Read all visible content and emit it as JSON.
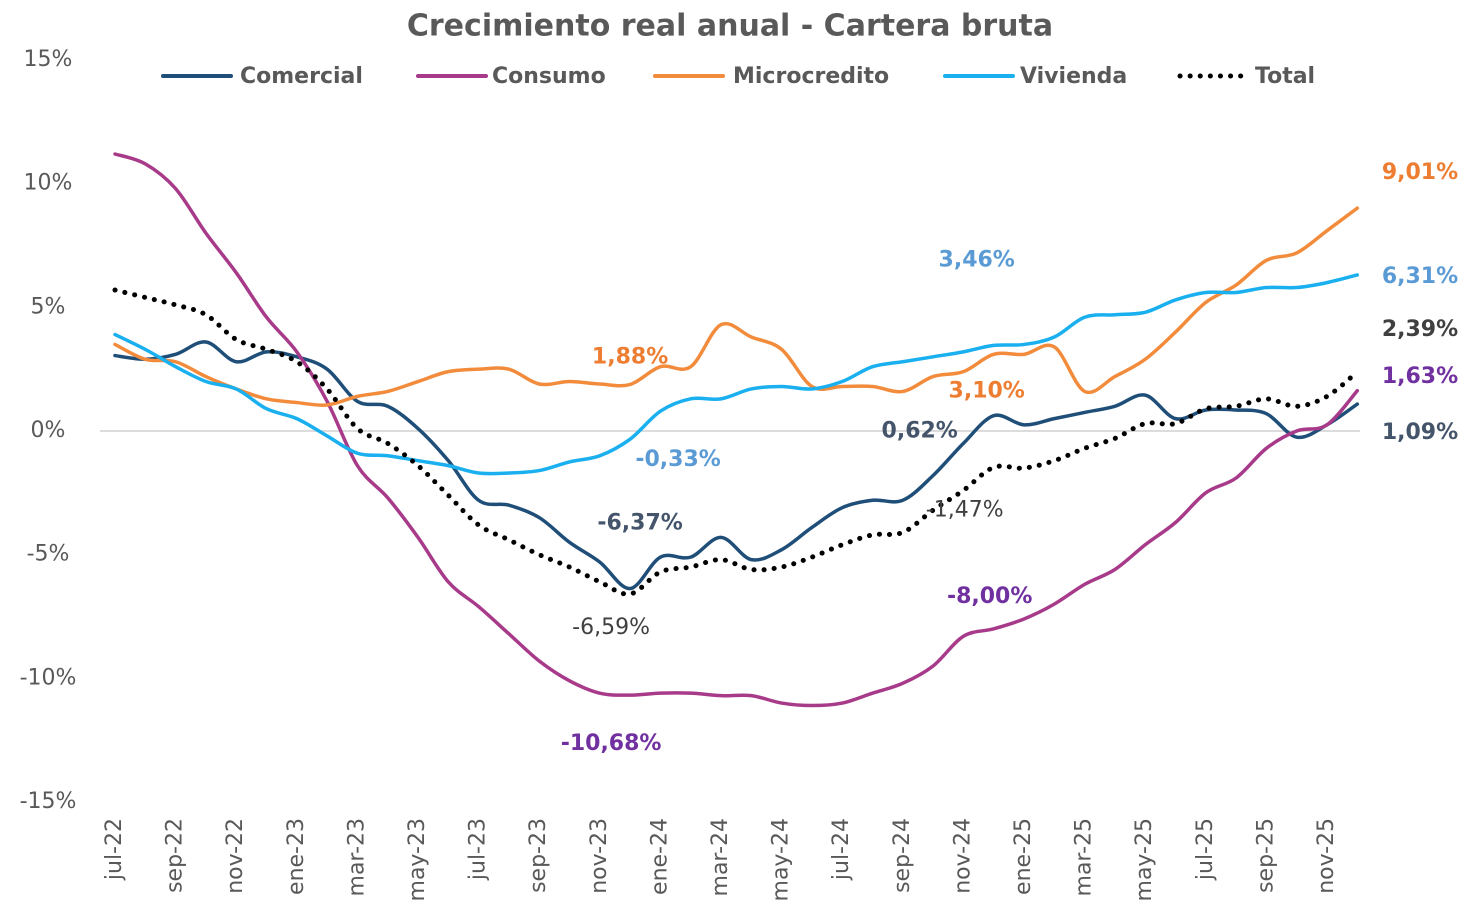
{
  "chart_data": {
    "type": "line",
    "title": "Crecimiento real anual - Cartera bruta",
    "categories": [
      "jul-22",
      null,
      "sep-22",
      null,
      "nov-22",
      null,
      "ene-23",
      null,
      "mar-23",
      null,
      "may-23",
      null,
      "jul-23",
      null,
      "sep-23",
      null,
      "nov-23",
      null,
      "ene-24",
      null,
      "mar-24",
      null,
      "may-24",
      null,
      "jul-24",
      null,
      "sep-24",
      null,
      "nov-24",
      null,
      "ene-25",
      null,
      "mar-25",
      null,
      "may-25",
      null,
      "jul-25",
      null,
      "sep-25",
      null,
      "nov-25",
      null
    ],
    "ylim": [
      -15,
      15
    ],
    "yticks": [
      {
        "value": -15,
        "label": "-15%"
      },
      {
        "value": -10,
        "label": "-10%"
      },
      {
        "value": -5,
        "label": "-5%"
      },
      {
        "value": 0,
        "label": "0%"
      },
      {
        "value": 5,
        "label": "5%"
      },
      {
        "value": 10,
        "label": "10%"
      },
      {
        "value": 15,
        "label": "15%"
      }
    ],
    "grid": false,
    "legend": "top",
    "series": [
      {
        "name": "Comercial",
        "color": "#1f4e79",
        "label_color": "#44546a",
        "values": [
          3.05,
          2.9,
          3.1,
          3.6,
          2.8,
          3.2,
          3.0,
          2.5,
          1.2,
          1.0,
          0.1,
          -1.2,
          -2.8,
          -3.0,
          -3.5,
          -4.5,
          -5.3,
          -6.37,
          -5.1,
          -5.1,
          -4.3,
          -5.2,
          -4.8,
          -3.9,
          -3.1,
          -2.8,
          -2.8,
          -1.8,
          -0.5,
          0.62,
          0.25,
          0.5,
          0.75,
          1.0,
          1.45,
          0.5,
          0.85,
          0.85,
          0.7,
          -0.25,
          0.25,
          1.09
        ],
        "value_labels": [
          null,
          null,
          null,
          null,
          null,
          null,
          null,
          null,
          null,
          null,
          null,
          null,
          null,
          null,
          null,
          null,
          null,
          "-6,37%",
          null,
          null,
          null,
          null,
          null,
          null,
          null,
          null,
          null,
          null,
          null,
          "0,62%",
          null,
          null,
          null,
          null,
          null,
          null,
          null,
          null,
          null,
          null,
          null,
          "1,09%"
        ]
      },
      {
        "name": "Consumo",
        "color": "#a83a8a",
        "label_color": "#7030a0",
        "values": [
          11.2,
          10.8,
          9.8,
          8.0,
          6.4,
          4.6,
          3.2,
          1.2,
          -1.4,
          -2.7,
          -4.3,
          -6.1,
          -7.1,
          -8.2,
          -9.3,
          -10.1,
          -10.6,
          -10.68,
          -10.6,
          -10.6,
          -10.7,
          -10.7,
          -11.0,
          -11.1,
          -11.0,
          -10.6,
          -10.2,
          -9.5,
          -8.3,
          -8.0,
          -7.6,
          -7.0,
          -6.2,
          -5.6,
          -4.6,
          -3.7,
          -2.5,
          -1.9,
          -0.7,
          0.0,
          0.25,
          1.63
        ],
        "value_labels": [
          null,
          null,
          null,
          null,
          null,
          null,
          null,
          null,
          null,
          null,
          null,
          null,
          null,
          null,
          null,
          null,
          null,
          "-10,68%",
          null,
          null,
          null,
          null,
          null,
          null,
          null,
          null,
          null,
          null,
          null,
          "-8,00%",
          null,
          null,
          null,
          null,
          null,
          null,
          null,
          null,
          null,
          null,
          null,
          "1,63%"
        ]
      },
      {
        "name": "Microcredito",
        "color": "#f28c3c",
        "label_color": "#ed7d31",
        "values": [
          3.5,
          2.9,
          2.8,
          2.2,
          1.7,
          1.3,
          1.15,
          1.05,
          1.4,
          1.6,
          2.0,
          2.4,
          2.5,
          2.5,
          1.9,
          2.0,
          1.9,
          1.88,
          2.6,
          2.6,
          4.3,
          3.8,
          3.3,
          1.8,
          1.8,
          1.8,
          1.6,
          2.2,
          2.4,
          3.1,
          3.1,
          3.4,
          1.6,
          2.2,
          2.9,
          4.0,
          5.2,
          5.9,
          6.9,
          7.2,
          8.1,
          9.01
        ],
        "value_labels": [
          null,
          null,
          null,
          null,
          null,
          null,
          null,
          null,
          null,
          null,
          null,
          null,
          null,
          null,
          null,
          null,
          null,
          "1,88%",
          null,
          null,
          null,
          null,
          null,
          null,
          null,
          null,
          null,
          null,
          null,
          "3,10%",
          null,
          null,
          null,
          null,
          null,
          null,
          null,
          null,
          null,
          null,
          null,
          "9,01%"
        ]
      },
      {
        "name": "Vivienda",
        "color": "#1ab0f0",
        "label_color": "#5b9bd5",
        "values": [
          3.9,
          3.3,
          2.6,
          2.0,
          1.7,
          0.9,
          0.5,
          -0.2,
          -0.9,
          -1.0,
          -1.2,
          -1.4,
          -1.7,
          -1.7,
          -1.6,
          -1.25,
          -1.0,
          -0.33,
          0.8,
          1.3,
          1.3,
          1.7,
          1.8,
          1.7,
          2.0,
          2.6,
          2.8,
          3.0,
          3.2,
          3.46,
          3.5,
          3.8,
          4.6,
          4.7,
          4.8,
          5.3,
          5.6,
          5.6,
          5.8,
          5.8,
          6.0,
          6.31
        ],
        "value_labels": [
          null,
          null,
          null,
          null,
          null,
          null,
          null,
          null,
          null,
          null,
          null,
          null,
          null,
          null,
          null,
          null,
          null,
          "-0,33%",
          null,
          null,
          null,
          null,
          null,
          null,
          null,
          null,
          null,
          null,
          null,
          "3,46%",
          null,
          null,
          null,
          null,
          null,
          null,
          null,
          null,
          null,
          null,
          null,
          "6,31%"
        ]
      },
      {
        "name": "Total",
        "color": "#000000",
        "label_color": "#404040",
        "dash": "dotted",
        "values": [
          5.7,
          5.4,
          5.1,
          4.7,
          3.7,
          3.3,
          2.8,
          1.7,
          0.1,
          -0.5,
          -1.4,
          -2.6,
          -3.8,
          -4.4,
          -5.0,
          -5.5,
          -6.1,
          -6.59,
          -5.7,
          -5.5,
          -5.2,
          -5.6,
          -5.5,
          -5.1,
          -4.6,
          -4.2,
          -4.1,
          -3.2,
          -2.4,
          -1.47,
          -1.5,
          -1.2,
          -0.7,
          -0.3,
          0.3,
          0.3,
          0.9,
          1.0,
          1.3,
          1.0,
          1.4,
          2.39
        ],
        "value_labels": [
          null,
          null,
          null,
          null,
          null,
          null,
          null,
          null,
          null,
          null,
          null,
          null,
          null,
          null,
          null,
          null,
          null,
          "-6,59%",
          null,
          null,
          null,
          null,
          null,
          null,
          null,
          null,
          null,
          null,
          null,
          "-1,47%",
          null,
          null,
          null,
          null,
          null,
          null,
          null,
          null,
          null,
          null,
          null,
          "2,39%"
        ]
      }
    ]
  }
}
